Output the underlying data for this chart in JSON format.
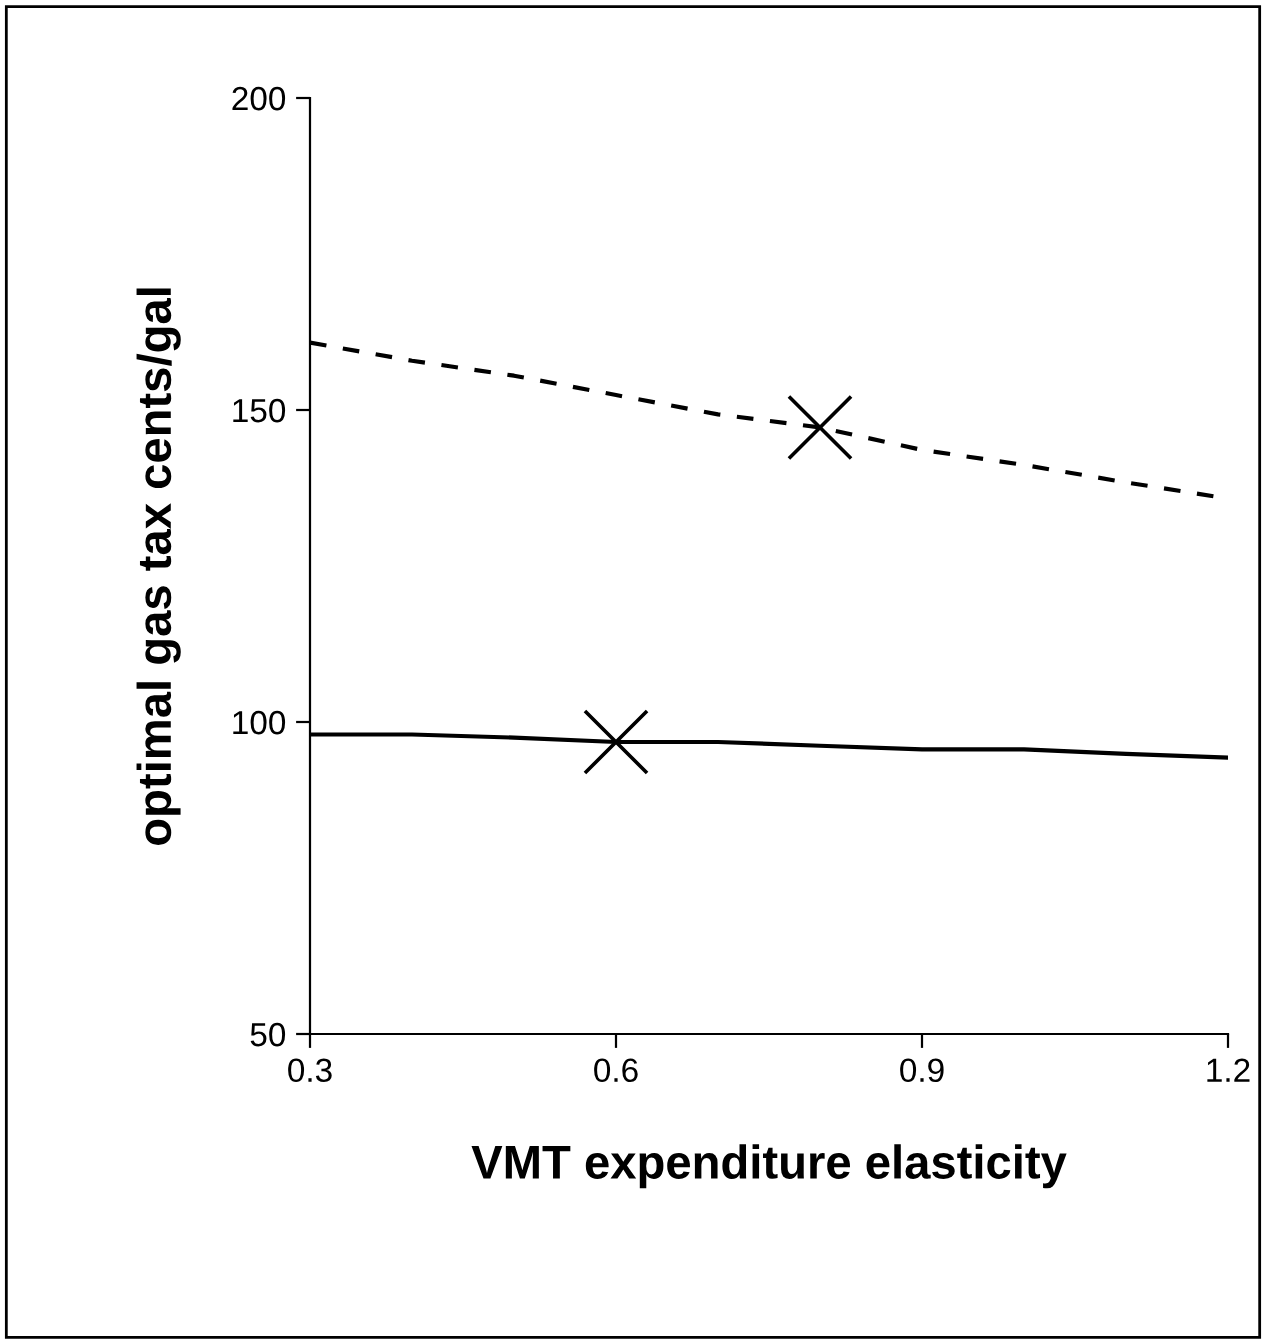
{
  "chart_data": {
    "type": "line",
    "xlabel": "VMT expenditure elasticity",
    "ylabel": "optimal gas tax cents/gal",
    "x": [
      0.3,
      0.4,
      0.5,
      0.6,
      0.7,
      0.8,
      0.9,
      1.0,
      1.1,
      1.2
    ],
    "series": [
      {
        "color": "#000000",
        "line_style": "dashed",
        "marker": "none",
        "values": [
          160.8,
          157.9,
          155.5,
          152.4,
          149.3,
          147.2,
          143.6,
          141.2,
          138.4,
          135.8
        ]
      },
      {
        "color": "#000000",
        "line_style": "solid",
        "marker": "none",
        "values": [
          98.0,
          98.0,
          97.5,
          96.8,
          96.8,
          96.2,
          95.6,
          95.6,
          94.9,
          94.3
        ]
      },
      {
        "type": "scatter",
        "color": "#000000",
        "marker": "cross",
        "x": [
          0.6,
          0.8
        ],
        "values": [
          96.8,
          147.2
        ]
      }
    ],
    "xlim": [
      0.3,
      1.2
    ],
    "xticks": [
      0.3,
      0.6,
      0.9,
      1.2
    ],
    "ylim": [
      50,
      200
    ],
    "yticks": [
      50,
      100,
      150,
      200
    ],
    "grid": false,
    "legend": false
  }
}
